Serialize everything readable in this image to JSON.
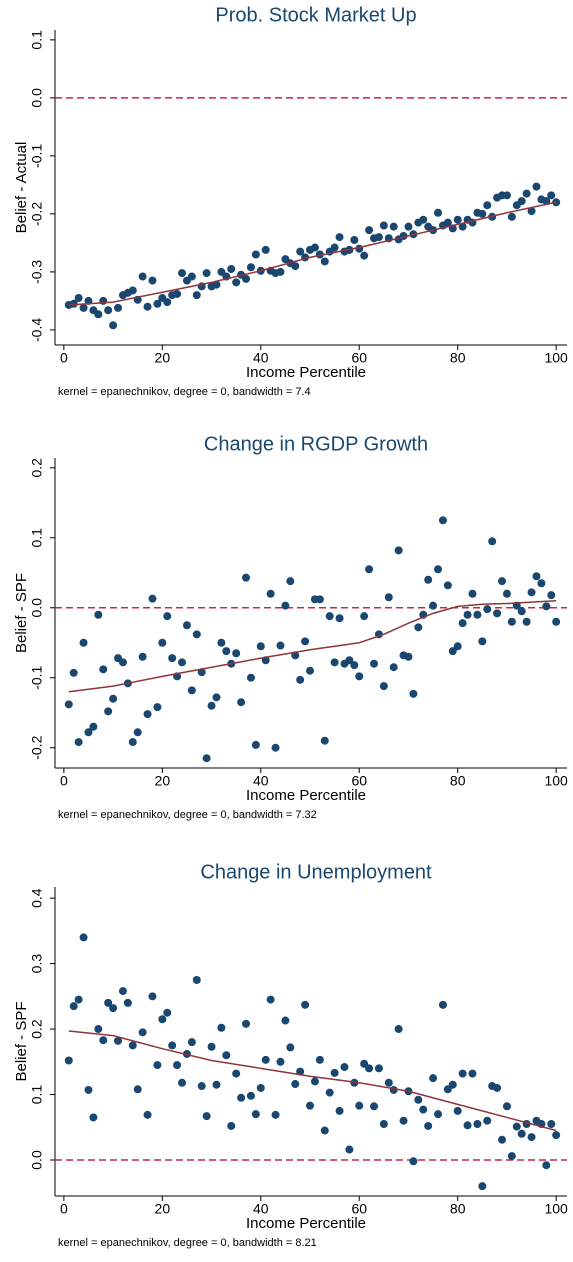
{
  "chart_data": [
    {
      "type": "scatter",
      "title": "Prob. Stock Market Up",
      "x_label": "Income Percentile",
      "y_label": "Belief - Actual",
      "note": "kernel = epanechnikov, degree = 0, bandwidth = 7.4",
      "xlim": [
        -1.8,
        102.2
      ],
      "xticks": [
        0,
        20,
        40,
        60,
        80,
        100
      ],
      "ylim": [
        -0.426,
        0.117
      ],
      "yticks": [
        0.1,
        {
          "value": 0,
          "label": "0.0"
        },
        -0.1,
        -0.2,
        -0.3,
        -0.4
      ],
      "color": "#1a476f",
      "x": [
        1,
        2,
        3,
        4,
        5,
        6,
        7,
        8,
        9,
        10,
        11,
        12,
        13,
        14,
        15,
        16,
        17,
        18,
        19,
        20,
        21,
        22,
        23,
        24,
        25,
        26,
        27,
        28,
        29,
        30,
        31,
        32,
        33,
        34,
        35,
        36,
        37,
        38,
        39,
        40,
        41,
        42,
        43,
        44,
        45,
        46,
        47,
        48,
        49,
        50,
        51,
        52,
        53,
        54,
        55,
        56,
        57,
        58,
        59,
        60,
        61,
        62,
        63,
        64,
        65,
        66,
        67,
        68,
        69,
        70,
        71,
        72,
        73,
        74,
        75,
        76,
        77,
        78,
        79,
        80,
        81,
        82,
        83,
        84,
        85,
        86,
        87,
        88,
        89,
        90,
        91,
        92,
        93,
        94,
        95,
        96,
        97,
        98,
        99,
        100
      ],
      "values": [
        -0.357,
        -0.355,
        -0.345,
        -0.362,
        -0.35,
        -0.366,
        -0.373,
        -0.35,
        -0.366,
        -0.392,
        -0.362,
        -0.34,
        -0.336,
        -0.332,
        -0.348,
        -0.308,
        -0.36,
        -0.315,
        -0.355,
        -0.345,
        -0.352,
        -0.34,
        -0.338,
        -0.302,
        -0.315,
        -0.308,
        -0.34,
        -0.325,
        -0.302,
        -0.325,
        -0.322,
        -0.3,
        -0.308,
        -0.295,
        -0.318,
        -0.305,
        -0.312,
        -0.292,
        -0.27,
        -0.298,
        -0.262,
        -0.298,
        -0.302,
        -0.3,
        -0.278,
        -0.285,
        -0.29,
        -0.265,
        -0.275,
        -0.262,
        -0.258,
        -0.27,
        -0.282,
        -0.265,
        -0.258,
        -0.24,
        -0.265,
        -0.262,
        -0.245,
        -0.26,
        -0.272,
        -0.228,
        -0.242,
        -0.24,
        -0.22,
        -0.242,
        -0.222,
        -0.244,
        -0.238,
        -0.222,
        -0.235,
        -0.215,
        -0.21,
        -0.222,
        -0.228,
        -0.198,
        -0.22,
        -0.215,
        -0.225,
        -0.21,
        -0.222,
        -0.21,
        -0.215,
        -0.198,
        -0.2,
        -0.185,
        -0.205,
        -0.172,
        -0.168,
        -0.168,
        -0.205,
        -0.185,
        -0.178,
        -0.165,
        -0.195,
        -0.153,
        -0.175,
        -0.178,
        -0.168,
        -0.18
      ],
      "smooth": {
        "color": "#90353b",
        "x": [
          1,
          10,
          20,
          30,
          40,
          50,
          60,
          70,
          80,
          90,
          100
        ],
        "values": [
          -0.357,
          -0.352,
          -0.335,
          -0.318,
          -0.298,
          -0.275,
          -0.258,
          -0.238,
          -0.218,
          -0.198,
          -0.18
        ]
      },
      "yline": 0,
      "yline_color": "#c0284b"
    },
    {
      "type": "scatter",
      "title": "Change in RGDP Growth",
      "x_label": "Income Percentile",
      "y_label": "Belief - SPF",
      "note": "kernel = epanechnikov, degree = 0, bandwidth = 7.32",
      "xlim": [
        -1.8,
        102.2
      ],
      "xticks": [
        0,
        20,
        40,
        60,
        80,
        100
      ],
      "ylim": [
        -0.229,
        0.214
      ],
      "yticks": [
        0.2,
        0.1,
        {
          "value": 0,
          "label": "0.0"
        },
        -0.1,
        -0.2
      ],
      "color": "#1a476f",
      "x": [
        1,
        2,
        3,
        4,
        5,
        6,
        7,
        8,
        9,
        10,
        11,
        12,
        13,
        14,
        15,
        16,
        17,
        18,
        19,
        20,
        21,
        22,
        23,
        24,
        25,
        26,
        27,
        28,
        29,
        30,
        31,
        32,
        33,
        34,
        35,
        36,
        37,
        38,
        39,
        40,
        41,
        42,
        43,
        44,
        45,
        46,
        47,
        48,
        49,
        50,
        51,
        52,
        53,
        54,
        55,
        56,
        57,
        58,
        59,
        60,
        61,
        62,
        63,
        64,
        65,
        66,
        67,
        68,
        69,
        70,
        71,
        72,
        73,
        74,
        75,
        76,
        77,
        78,
        79,
        80,
        81,
        82,
        83,
        84,
        85,
        86,
        87,
        88,
        89,
        90,
        91,
        92,
        93,
        94,
        95,
        96,
        97,
        98,
        99,
        100
      ],
      "values": [
        -0.138,
        -0.093,
        -0.192,
        -0.05,
        -0.178,
        -0.17,
        -0.01,
        -0.088,
        -0.148,
        -0.13,
        -0.072,
        -0.078,
        -0.108,
        -0.192,
        -0.178,
        -0.07,
        -0.152,
        0.013,
        -0.142,
        -0.05,
        -0.012,
        -0.072,
        -0.098,
        -0.078,
        -0.025,
        -0.118,
        -0.038,
        -0.092,
        -0.215,
        -0.14,
        -0.128,
        -0.05,
        -0.062,
        -0.08,
        -0.065,
        -0.135,
        0.043,
        -0.1,
        -0.196,
        -0.055,
        -0.075,
        0.02,
        -0.2,
        -0.054,
        0.003,
        0.038,
        -0.068,
        -0.103,
        -0.048,
        -0.09,
        0.012,
        0.012,
        -0.19,
        -0.012,
        -0.078,
        -0.015,
        -0.08,
        -0.075,
        -0.082,
        -0.098,
        -0.012,
        0.055,
        -0.08,
        -0.038,
        -0.112,
        0.015,
        -0.085,
        0.082,
        -0.068,
        -0.07,
        -0.123,
        -0.028,
        -0.01,
        0.04,
        0.003,
        0.055,
        0.125,
        0.032,
        -0.062,
        -0.055,
        -0.022,
        -0.01,
        0.02,
        -0.01,
        -0.048,
        -0.002,
        0.095,
        -0.008,
        0.038,
        0.02,
        -0.02,
        0.003,
        -0.005,
        -0.02,
        0.022,
        0.045,
        0.035,
        0.002,
        0.018,
        -0.02
      ],
      "smooth": {
        "color": "#90353b",
        "x": [
          1,
          10,
          20,
          30,
          40,
          50,
          60,
          65,
          70,
          75,
          80,
          85,
          90,
          95,
          100
        ],
        "values": [
          -0.12,
          -0.112,
          -0.098,
          -0.085,
          -0.072,
          -0.06,
          -0.05,
          -0.038,
          -0.022,
          -0.008,
          0.002,
          0.005,
          0.006,
          0.008,
          0.01
        ]
      },
      "yline": 0,
      "yline_color": "#c0284b"
    },
    {
      "type": "scatter",
      "title": "Change in Unemployment",
      "x_label": "Income Percentile",
      "y_label": "Belief - SPF",
      "note": "kernel = epanechnikov, degree = 0, bandwidth = 8.21",
      "xlim": [
        -1.8,
        102.2
      ],
      "xticks": [
        0,
        20,
        40,
        60,
        80,
        100
      ],
      "ylim": [
        -0.055,
        0.417
      ],
      "yticks": [
        0.4,
        0.3,
        0.2,
        0.1,
        {
          "value": 0,
          "label": "0.0"
        }
      ],
      "color": "#1a476f",
      "x": [
        1,
        2,
        3,
        4,
        5,
        6,
        7,
        8,
        9,
        10,
        11,
        12,
        13,
        14,
        15,
        16,
        17,
        18,
        19,
        20,
        21,
        22,
        23,
        24,
        25,
        26,
        27,
        28,
        29,
        30,
        31,
        32,
        33,
        34,
        35,
        36,
        37,
        38,
        39,
        40,
        41,
        42,
        43,
        44,
        45,
        46,
        47,
        48,
        49,
        50,
        51,
        52,
        53,
        54,
        55,
        56,
        57,
        58,
        59,
        60,
        61,
        62,
        63,
        64,
        65,
        66,
        67,
        68,
        69,
        70,
        71,
        72,
        73,
        74,
        75,
        76,
        77,
        78,
        79,
        80,
        81,
        82,
        83,
        84,
        85,
        86,
        87,
        88,
        89,
        90,
        91,
        92,
        93,
        94,
        95,
        96,
        97,
        98,
        99,
        100
      ],
      "values": [
        0.152,
        0.235,
        0.245,
        0.34,
        0.107,
        0.065,
        0.2,
        0.183,
        0.24,
        0.232,
        0.182,
        0.258,
        0.24,
        0.175,
        0.108,
        0.195,
        0.069,
        0.25,
        0.145,
        0.215,
        0.225,
        0.175,
        0.145,
        0.118,
        0.162,
        0.18,
        0.275,
        0.113,
        0.067,
        0.173,
        0.115,
        0.202,
        0.16,
        0.052,
        0.132,
        0.095,
        0.208,
        0.098,
        0.07,
        0.11,
        0.153,
        0.245,
        0.069,
        0.15,
        0.213,
        0.172,
        0.116,
        0.135,
        0.237,
        0.083,
        0.12,
        0.153,
        0.045,
        0.103,
        0.133,
        0.075,
        0.142,
        0.016,
        0.118,
        0.083,
        0.147,
        0.14,
        0.082,
        0.14,
        0.055,
        0.118,
        0.107,
        0.2,
        0.06,
        0.105,
        -0.002,
        0.092,
        0.077,
        0.052,
        0.125,
        0.07,
        0.237,
        0.108,
        0.115,
        0.075,
        0.132,
        0.053,
        0.132,
        0.055,
        -0.04,
        0.06,
        0.113,
        0.11,
        0.031,
        0.082,
        0.006,
        0.051,
        0.04,
        0.055,
        0.035,
        0.06,
        0.055,
        -0.008,
        0.055,
        0.038
      ],
      "smooth": {
        "color": "#90353b",
        "x": [
          1,
          10,
          20,
          30,
          40,
          50,
          60,
          70,
          80,
          90,
          100
        ],
        "values": [
          0.197,
          0.19,
          0.17,
          0.152,
          0.14,
          0.128,
          0.118,
          0.105,
          0.085,
          0.065,
          0.045
        ]
      },
      "yline": 0,
      "yline_color": "#c0284b"
    }
  ]
}
